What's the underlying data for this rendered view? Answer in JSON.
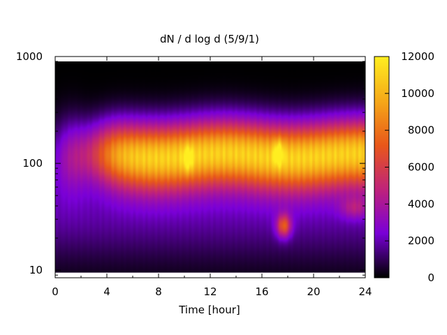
{
  "chart_data": {
    "type": "heatmap",
    "title": "dN / d log d (5/9/1)",
    "xlabel": "Time [hour]",
    "ylabel": "",
    "xlim": [
      0,
      24
    ],
    "ylim": [
      8.5,
      1000
    ],
    "y_scale": "log",
    "x_ticks": [
      "0",
      "4",
      "8",
      "12",
      "16",
      "20",
      "24"
    ],
    "y_ticks": [
      "10",
      "100",
      "1000"
    ],
    "colorbar": {
      "range": [
        0,
        12000
      ],
      "ticks": [
        "0",
        "2000",
        "4000",
        "6000",
        "8000",
        "10000",
        "12000"
      ],
      "colormap": [
        "#000000",
        "#7a00d8",
        "#c0237a",
        "#e8581a",
        "#f5a818",
        "#ffee20"
      ]
    },
    "data_extent": {
      "x": [
        0,
        24
      ],
      "y": [
        9.5,
        900
      ]
    },
    "features": [
      {
        "name": "main band",
        "x_range": [
          2,
          24
        ],
        "y_peak": 120,
        "peak_value": 11000
      },
      {
        "name": "local maximum",
        "x": 10.3,
        "y": 110,
        "value": 10500
      },
      {
        "name": "local maximum",
        "x": 17.3,
        "y": 125,
        "value": 11500
      },
      {
        "name": "secondary peak",
        "x": 17.7,
        "y": 26,
        "value": 8500
      }
    ]
  }
}
